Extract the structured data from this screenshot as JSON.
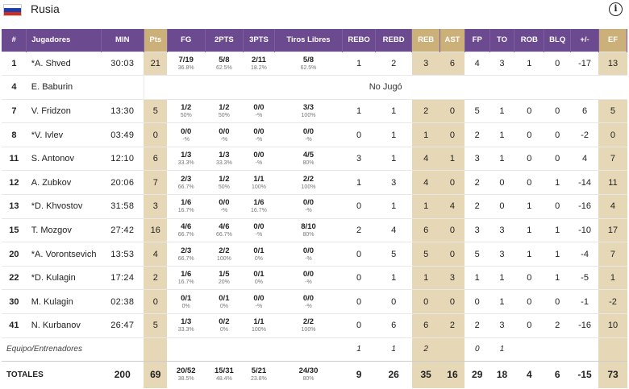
{
  "team": {
    "name": "Rusia",
    "flag_colors": [
      "#ffffff",
      "#1c3fa8",
      "#d52b1e"
    ],
    "info_icon": "info-icon"
  },
  "colors": {
    "header_purple": "#6b4a8f",
    "highlight_header": "#cbb07a",
    "highlight_cell": "#e6d8b6"
  },
  "columns": [
    "#",
    "Jugadores",
    "MIN",
    "Pts",
    "FG",
    "2PTS",
    "3PTS",
    "Tiros Libres",
    "REBO",
    "REBD",
    "REB",
    "AST",
    "FP",
    "TO",
    "ROB",
    "BLQ",
    "+/-",
    "EF"
  ],
  "players": [
    {
      "num": "1",
      "name": "*A. Shved",
      "min": "30:03",
      "pts": "21",
      "fg": "7/19",
      "fg_pct": "36.8%",
      "p2": "5/8",
      "p2_pct": "62.5%",
      "p3": "2/11",
      "p3_pct": "18.2%",
      "ft": "5/8",
      "ft_pct": "62.5%",
      "rebo": "1",
      "rebd": "2",
      "reb": "3",
      "ast": "6",
      "fp": "4",
      "to": "3",
      "rob": "1",
      "blq": "0",
      "pm": "-17",
      "ef": "13"
    },
    {
      "num": "4",
      "name": "E. Baburin",
      "dnp": "No Jugó"
    },
    {
      "num": "7",
      "name": "V. Fridzon",
      "min": "13:30",
      "pts": "5",
      "fg": "1/2",
      "fg_pct": "50%",
      "p2": "1/2",
      "p2_pct": "50%",
      "p3": "0/0",
      "p3_pct": "-%",
      "ft": "3/3",
      "ft_pct": "100%",
      "rebo": "1",
      "rebd": "1",
      "reb": "2",
      "ast": "0",
      "fp": "5",
      "to": "1",
      "rob": "0",
      "blq": "0",
      "pm": "6",
      "ef": "5"
    },
    {
      "num": "8",
      "name": "*V. Ivlev",
      "min": "03:49",
      "pts": "0",
      "fg": "0/0",
      "fg_pct": "-%",
      "p2": "0/0",
      "p2_pct": "-%",
      "p3": "0/0",
      "p3_pct": "-%",
      "ft": "0/0",
      "ft_pct": "-%",
      "rebo": "0",
      "rebd": "1",
      "reb": "1",
      "ast": "0",
      "fp": "2",
      "to": "1",
      "rob": "0",
      "blq": "0",
      "pm": "-2",
      "ef": "0"
    },
    {
      "num": "11",
      "name": "S. Antonov",
      "min": "12:10",
      "pts": "6",
      "fg": "1/3",
      "fg_pct": "33.3%",
      "p2": "1/3",
      "p2_pct": "33.3%",
      "p3": "0/0",
      "p3_pct": "-%",
      "ft": "4/5",
      "ft_pct": "80%",
      "rebo": "3",
      "rebd": "1",
      "reb": "4",
      "ast": "1",
      "fp": "3",
      "to": "1",
      "rob": "0",
      "blq": "0",
      "pm": "4",
      "ef": "7"
    },
    {
      "num": "12",
      "name": "A. Zubkov",
      "min": "20:06",
      "pts": "7",
      "fg": "2/3",
      "fg_pct": "66.7%",
      "p2": "1/2",
      "p2_pct": "50%",
      "p3": "1/1",
      "p3_pct": "100%",
      "ft": "2/2",
      "ft_pct": "100%",
      "rebo": "1",
      "rebd": "3",
      "reb": "4",
      "ast": "0",
      "fp": "2",
      "to": "0",
      "rob": "0",
      "blq": "1",
      "pm": "-14",
      "ef": "11"
    },
    {
      "num": "13",
      "name": "*D. Khvostov",
      "min": "31:58",
      "pts": "3",
      "fg": "1/6",
      "fg_pct": "16.7%",
      "p2": "0/0",
      "p2_pct": "-%",
      "p3": "1/6",
      "p3_pct": "16.7%",
      "ft": "0/0",
      "ft_pct": "-%",
      "rebo": "0",
      "rebd": "1",
      "reb": "1",
      "ast": "4",
      "fp": "2",
      "to": "0",
      "rob": "1",
      "blq": "0",
      "pm": "-16",
      "ef": "4"
    },
    {
      "num": "15",
      "name": "T. Mozgov",
      "min": "27:42",
      "pts": "16",
      "fg": "4/6",
      "fg_pct": "66.7%",
      "p2": "4/6",
      "p2_pct": "66.7%",
      "p3": "0/0",
      "p3_pct": "-%",
      "ft": "8/10",
      "ft_pct": "80%",
      "rebo": "2",
      "rebd": "4",
      "reb": "6",
      "ast": "0",
      "fp": "3",
      "to": "3",
      "rob": "1",
      "blq": "1",
      "pm": "-10",
      "ef": "17"
    },
    {
      "num": "20",
      "name": "*A. Vorontsevich",
      "min": "13:53",
      "pts": "4",
      "fg": "2/3",
      "fg_pct": "66.7%",
      "p2": "2/2",
      "p2_pct": "100%",
      "p3": "0/1",
      "p3_pct": "0%",
      "ft": "0/0",
      "ft_pct": "-%",
      "rebo": "0",
      "rebd": "5",
      "reb": "5",
      "ast": "0",
      "fp": "5",
      "to": "3",
      "rob": "1",
      "blq": "1",
      "pm": "-4",
      "ef": "7"
    },
    {
      "num": "22",
      "name": "*D. Kulagin",
      "min": "17:24",
      "pts": "2",
      "fg": "1/6",
      "fg_pct": "16.7%",
      "p2": "1/5",
      "p2_pct": "20%",
      "p3": "0/1",
      "p3_pct": "0%",
      "ft": "0/0",
      "ft_pct": "-%",
      "rebo": "0",
      "rebd": "1",
      "reb": "1",
      "ast": "3",
      "fp": "1",
      "to": "1",
      "rob": "0",
      "blq": "1",
      "pm": "-5",
      "ef": "1"
    },
    {
      "num": "30",
      "name": "M. Kulagin",
      "min": "02:38",
      "pts": "0",
      "fg": "0/1",
      "fg_pct": "0%",
      "p2": "0/1",
      "p2_pct": "0%",
      "p3": "0/0",
      "p3_pct": "-%",
      "ft": "0/0",
      "ft_pct": "-%",
      "rebo": "0",
      "rebd": "0",
      "reb": "0",
      "ast": "0",
      "fp": "0",
      "to": "1",
      "rob": "0",
      "blq": "0",
      "pm": "-1",
      "ef": "-2"
    },
    {
      "num": "41",
      "name": "N. Kurbanov",
      "min": "26:47",
      "pts": "5",
      "fg": "1/3",
      "fg_pct": "33.3%",
      "p2": "0/2",
      "p2_pct": "0%",
      "p3": "1/1",
      "p3_pct": "100%",
      "ft": "2/2",
      "ft_pct": "100%",
      "rebo": "0",
      "rebd": "6",
      "reb": "6",
      "ast": "2",
      "fp": "2",
      "to": "3",
      "rob": "0",
      "blq": "2",
      "pm": "-16",
      "ef": "10"
    }
  ],
  "team_row": {
    "label": "Equipo/Entrenadores",
    "rebo": "1",
    "rebd": "1",
    "reb": "2",
    "fp": "0",
    "to": "1"
  },
  "totals": {
    "label": "TOTALES",
    "min": "200",
    "pts": "69",
    "fg": "20/52",
    "fg_pct": "38.5%",
    "p2": "15/31",
    "p2_pct": "48.4%",
    "p3": "5/21",
    "p3_pct": "23.8%",
    "ft": "24/30",
    "ft_pct": "80%",
    "rebo": "9",
    "rebd": "26",
    "reb": "35",
    "ast": "16",
    "fp": "29",
    "to": "18",
    "rob": "4",
    "blq": "6",
    "pm": "-15",
    "ef": "73"
  }
}
